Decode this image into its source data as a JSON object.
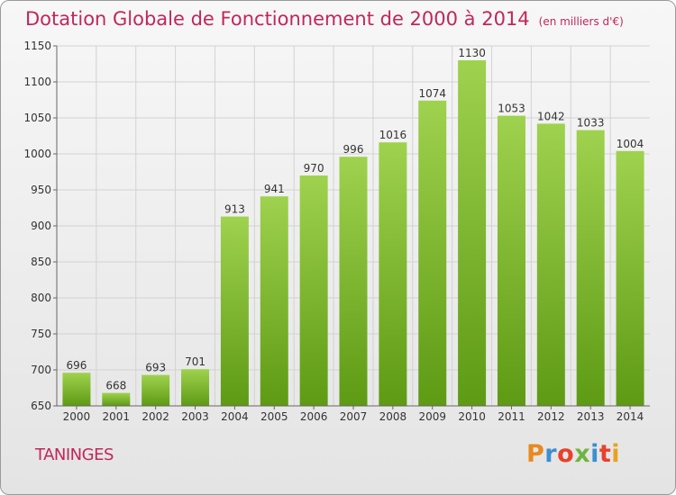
{
  "header": {
    "title": "Dotation Globale de Fonctionnement de 2000 à 2014",
    "unit": "(en milliers d'€)"
  },
  "footer": {
    "commune": "TANINGES",
    "brand": "Proxiti",
    "brand_colors": [
      "#e88a1e",
      "#3c8fd0",
      "#e8412c",
      "#6fb43f",
      "#3c8fd0",
      "#e8412c",
      "#e8a21e"
    ]
  },
  "chart_data": {
    "type": "bar",
    "title": "Dotation Globale de Fonctionnement de 2000 à 2014",
    "subtitle": "(en milliers d'€)",
    "xlabel": "",
    "ylabel": "",
    "categories": [
      "2000",
      "2001",
      "2002",
      "2003",
      "2004",
      "2005",
      "2006",
      "2007",
      "2008",
      "2009",
      "2010",
      "2011",
      "2012",
      "2013",
      "2014"
    ],
    "values": [
      696,
      668,
      693,
      701,
      913,
      941,
      970,
      996,
      1016,
      1074,
      1130,
      1053,
      1042,
      1033,
      1004
    ],
    "ylim": [
      650,
      1150
    ],
    "yticks": [
      650,
      700,
      750,
      800,
      850,
      900,
      950,
      1000,
      1050,
      1100,
      1150
    ],
    "grid": true,
    "bar_color_top": "#9fd24e",
    "bar_color_bottom": "#5e9a14"
  }
}
